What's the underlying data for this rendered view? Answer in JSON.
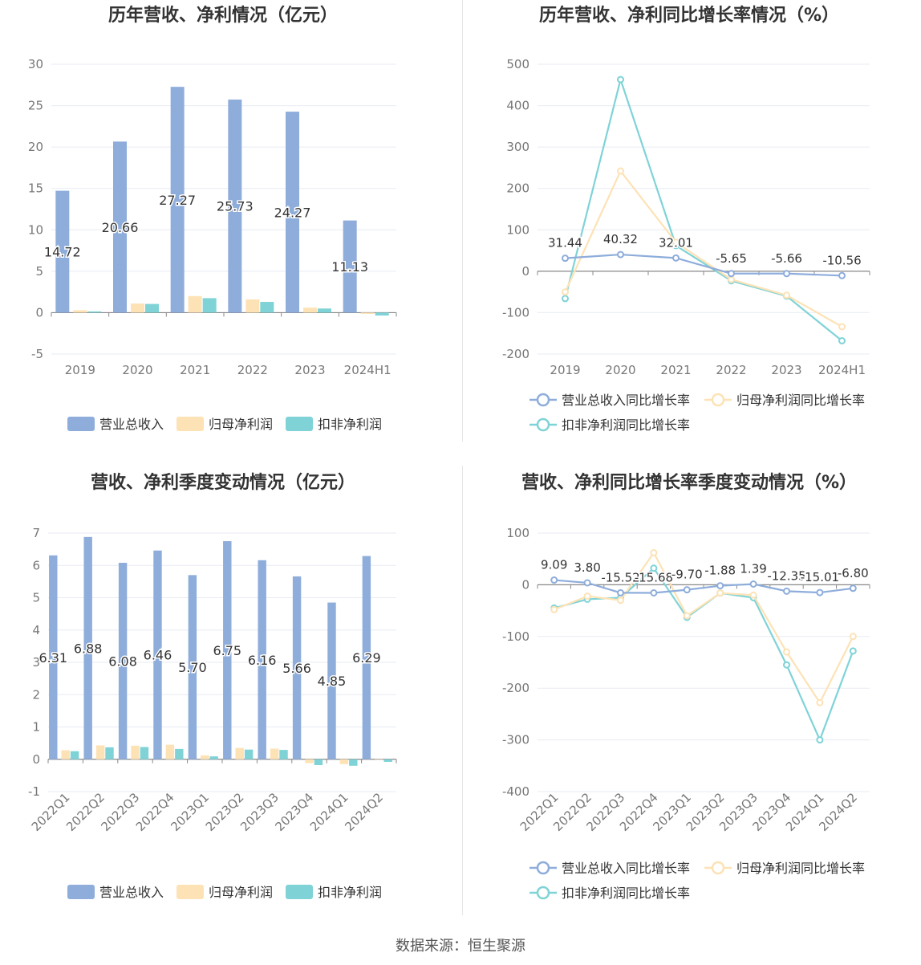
{
  "colors": {
    "revenue": "#8eaddb",
    "parent_profit": "#fde2b5",
    "deducted_profit": "#7fd3d7",
    "revenue_line": "#8eaddb",
    "parent_line": "#fde2b5",
    "deducted_line": "#7fd3d7"
  },
  "source": "数据来源：恒生聚源",
  "chart_data": [
    {
      "type": "bar",
      "title": "历年营收、净利情况（亿元）",
      "categories": [
        "2019",
        "2020",
        "2021",
        "2022",
        "2023",
        "2024H1"
      ],
      "ylim": [
        -5,
        30
      ],
      "yticks": [
        -5,
        0,
        5,
        10,
        15,
        20,
        25,
        30
      ],
      "series": [
        {
          "name": "营业总收入",
          "values": [
            14.72,
            20.66,
            27.27,
            25.73,
            24.27,
            11.13
          ],
          "labels": [
            "14.72",
            "20.66",
            "27.27",
            "25.73",
            "24.27",
            "11.13"
          ]
        },
        {
          "name": "归母净利润",
          "values": [
            0.3,
            1.1,
            2.0,
            1.6,
            0.6,
            -0.15
          ]
        },
        {
          "name": "扣非净利润",
          "values": [
            0.15,
            1.05,
            1.75,
            1.3,
            0.5,
            -0.35
          ]
        }
      ]
    },
    {
      "type": "line",
      "title": "历年营收、净利同比增长率情况（%）",
      "categories": [
        "2019",
        "2020",
        "2021",
        "2022",
        "2023",
        "2024H1"
      ],
      "ylim": [
        -200,
        500
      ],
      "yticks": [
        -200,
        -100,
        0,
        100,
        200,
        300,
        400,
        500
      ],
      "series": [
        {
          "name": "营业总收入同比增长率",
          "values": [
            31.44,
            40.32,
            32.01,
            -5.65,
            -5.66,
            -10.56
          ],
          "labels": [
            "31.44",
            "40.32",
            "32.01",
            "-5.65",
            "-5.66",
            "-10.56"
          ]
        },
        {
          "name": "归母净利润同比增长率",
          "values": [
            -50,
            242,
            70,
            -20,
            -58,
            -134
          ]
        },
        {
          "name": "扣非净利润同比增长率",
          "values": [
            -66,
            463,
            62,
            -23,
            -60,
            -168
          ]
        }
      ]
    },
    {
      "type": "bar",
      "title": "营收、净利季度变动情况（亿元）",
      "categories": [
        "2022Q1",
        "2022Q2",
        "2022Q3",
        "2022Q4",
        "2023Q1",
        "2023Q2",
        "2023Q3",
        "2023Q4",
        "2024Q1",
        "2024Q2"
      ],
      "ylim": [
        -1,
        7
      ],
      "yticks": [
        -1,
        0,
        1,
        2,
        3,
        4,
        5,
        6,
        7
      ],
      "series": [
        {
          "name": "营业总收入",
          "values": [
            6.31,
            6.88,
            6.08,
            6.46,
            5.7,
            6.75,
            6.16,
            5.66,
            4.85,
            6.29
          ],
          "labels": [
            "6.31",
            "6.88",
            "6.08",
            "6.46",
            "5.70",
            "6.75",
            "6.16",
            "5.66",
            "4.85",
            "6.29"
          ]
        },
        {
          "name": "归母净利润",
          "values": [
            0.28,
            0.43,
            0.42,
            0.45,
            0.12,
            0.35,
            0.33,
            -0.12,
            -0.15,
            0.0
          ]
        },
        {
          "name": "扣非净利润",
          "values": [
            0.25,
            0.37,
            0.38,
            0.32,
            0.09,
            0.3,
            0.29,
            -0.18,
            -0.2,
            -0.08
          ]
        }
      ]
    },
    {
      "type": "line",
      "title": "营收、净利同比增长率季度变动情况（%）",
      "categories": [
        "2022Q1",
        "2022Q2",
        "2022Q3",
        "2022Q4",
        "2023Q1",
        "2023Q2",
        "2023Q3",
        "2023Q4",
        "2024Q1",
        "2024Q2"
      ],
      "ylim": [
        -400,
        100
      ],
      "yticks": [
        -400,
        -300,
        -200,
        -100,
        0,
        100
      ],
      "series": [
        {
          "name": "营业总收入同比增长率",
          "values": [
            9.09,
            3.8,
            -15.52,
            -15.68,
            -9.7,
            -1.88,
            1.39,
            -12.35,
            -15.01,
            -6.8
          ],
          "labels": [
            "9.09",
            "3.80",
            "-15.52",
            "-15.68",
            "-9.70",
            "-1.88",
            "1.39",
            "-12.35",
            "-15.01",
            "-6.80"
          ]
        },
        {
          "name": "归母净利润同比增长率",
          "values": [
            -48,
            -22,
            -30,
            62,
            -60,
            -16,
            -20,
            -130,
            -228,
            -100
          ]
        },
        {
          "name": "扣非净利润同比增长率",
          "values": [
            -45,
            -28,
            -25,
            32,
            -63,
            -16,
            -25,
            -155,
            -300,
            -128
          ]
        }
      ]
    }
  ]
}
